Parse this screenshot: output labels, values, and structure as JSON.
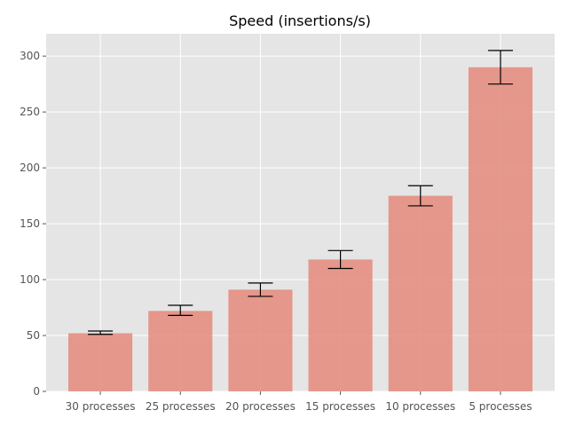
{
  "chart_data": {
    "type": "bar",
    "title": "Speed (insertions/s)",
    "xlabel": "",
    "ylabel": "",
    "categories": [
      "30 processes",
      "25 processes",
      "20 processes",
      "15 processes",
      "10 processes",
      "5 processes"
    ],
    "values": [
      52,
      72,
      91,
      118,
      175,
      290
    ],
    "error_low": [
      51,
      68,
      85,
      110,
      166,
      275
    ],
    "error_high": [
      54,
      77,
      97,
      126,
      184,
      305
    ],
    "ylim": [
      0,
      320
    ],
    "yticks": [
      0,
      50,
      100,
      150,
      200,
      250,
      300
    ],
    "grid": true,
    "colors": {
      "bar": "#E48A7A",
      "background": "#E5E5E5",
      "grid": "#FFFFFF",
      "error": "#000000"
    }
  }
}
